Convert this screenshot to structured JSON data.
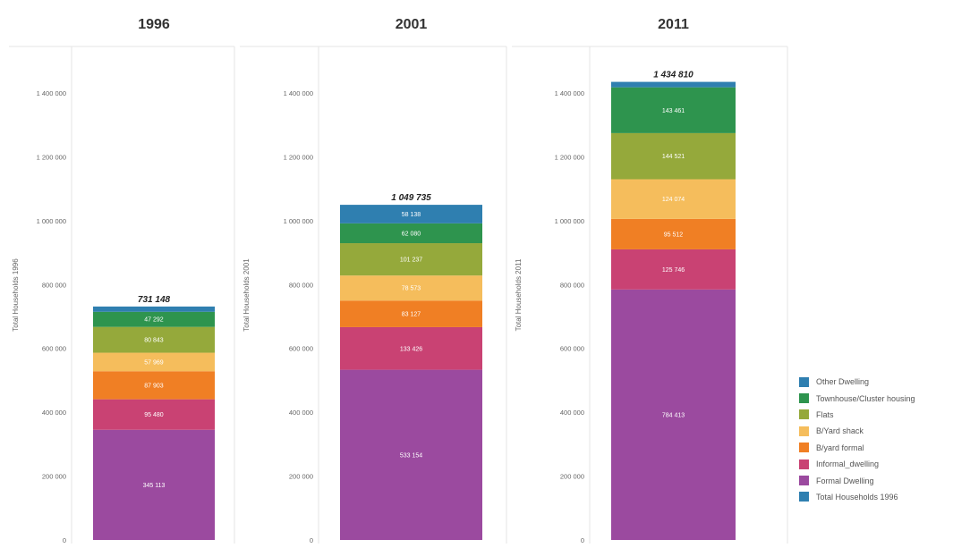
{
  "colors": {
    "formal": "#9b4a9f",
    "informal": "#c94273",
    "byard_formal": "#f07f24",
    "byard_shack": "#f5bd5c",
    "flats": "#95a93b",
    "townhouse": "#2e944e",
    "other": "#2f7fb0"
  },
  "chart_data": [
    {
      "type": "bar",
      "stacked": true,
      "title": "1996",
      "ylabel": "Total Households 1996",
      "ylim": [
        0,
        1500000
      ],
      "yticks": [
        "0",
        "200 000",
        "400 000",
        "600 000",
        "800 000",
        "1 000 000",
        "1 200 000",
        "1 400 000"
      ],
      "ytick_values": [
        0,
        200000,
        400000,
        600000,
        800000,
        1000000,
        1200000,
        1400000
      ],
      "total": 731148,
      "total_label": "731 148",
      "segments": [
        {
          "name": "Formal Dwelling",
          "color_key": "formal",
          "value": 345113,
          "label": "345 113"
        },
        {
          "name": "Informal_dwelling",
          "color_key": "informal",
          "value": 95480,
          "label": "95 480"
        },
        {
          "name": "B/yard formal",
          "color_key": "byard_formal",
          "value": 87903,
          "label": "87 903"
        },
        {
          "name": "B/Yard shack",
          "color_key": "byard_shack",
          "value": 57969,
          "label": "57 969"
        },
        {
          "name": "Flats",
          "color_key": "flats",
          "value": 80843,
          "label": "80 843"
        },
        {
          "name": "Townhouse/Cluster housing",
          "color_key": "townhouse",
          "value": 47292,
          "label": "47 292"
        },
        {
          "name": "Other Dwelling",
          "color_key": "other",
          "value": 16548,
          "label": ""
        }
      ]
    },
    {
      "type": "bar",
      "stacked": true,
      "title": "2001",
      "ylabel": "Total Households 2001",
      "ylim": [
        0,
        1500000
      ],
      "yticks": [
        "0",
        "200 000",
        "400 000",
        "600 000",
        "800 000",
        "1 000 000",
        "1 200 000",
        "1 400 000"
      ],
      "ytick_values": [
        0,
        200000,
        400000,
        600000,
        800000,
        1000000,
        1200000,
        1400000
      ],
      "total": 1049735,
      "total_label": "1 049 735",
      "segments": [
        {
          "name": "Formal Dwelling",
          "color_key": "formal",
          "value": 533154,
          "label": "533 154"
        },
        {
          "name": "Informal_dwelling",
          "color_key": "informal",
          "value": 133426,
          "label": "133 426"
        },
        {
          "name": "B/yard formal",
          "color_key": "byard_formal",
          "value": 83127,
          "label": "83 127"
        },
        {
          "name": "B/Yard shack",
          "color_key": "byard_shack",
          "value": 78573,
          "label": "78 573"
        },
        {
          "name": "Flats",
          "color_key": "flats",
          "value": 101237,
          "label": "101 237"
        },
        {
          "name": "Townhouse/Cluster housing",
          "color_key": "townhouse",
          "value": 62080,
          "label": "62 080"
        },
        {
          "name": "Other Dwelling",
          "color_key": "other",
          "value": 58138,
          "label": "58 138"
        }
      ]
    },
    {
      "type": "bar",
      "stacked": true,
      "title": "2011",
      "ylabel": "Total Households 2011",
      "ylim": [
        0,
        1500000
      ],
      "yticks": [
        "0",
        "200 000",
        "400 000",
        "600 000",
        "800 000",
        "1 000 000",
        "1 200 000",
        "1 400 000"
      ],
      "ytick_values": [
        0,
        200000,
        400000,
        600000,
        800000,
        1000000,
        1200000,
        1400000
      ],
      "total": 1434810,
      "total_label": "1 434 810",
      "segments": [
        {
          "name": "Formal Dwelling",
          "color_key": "formal",
          "value": 784413,
          "label": "784 413"
        },
        {
          "name": "Informal_dwelling",
          "color_key": "informal",
          "value": 125746,
          "label": "125 746"
        },
        {
          "name": "B/yard formal",
          "color_key": "byard_formal",
          "value": 95512,
          "label": "95 512"
        },
        {
          "name": "B/Yard shack",
          "color_key": "byard_shack",
          "value": 124074,
          "label": "124 074"
        },
        {
          "name": "Flats",
          "color_key": "flats",
          "value": 144521,
          "label": "144 521"
        },
        {
          "name": "Townhouse/Cluster housing",
          "color_key": "townhouse",
          "value": 143461,
          "label": "143 461"
        },
        {
          "name": "Other Dwelling",
          "color_key": "other",
          "value": 17083,
          "label": ""
        }
      ]
    }
  ],
  "legend": [
    {
      "label": "Other Dwelling",
      "color": "#2f7fb0"
    },
    {
      "label": "Townhouse/Cluster housing",
      "color": "#2e944e"
    },
    {
      "label": "Flats",
      "color": "#95a93b"
    },
    {
      "label": "B/Yard shack",
      "color": "#f5bd5c"
    },
    {
      "label": "B/yard formal",
      "color": "#f07f24"
    },
    {
      "label": "Informal_dwelling",
      "color": "#c94273"
    },
    {
      "label": "Formal Dwelling",
      "color": "#9b4a9f"
    },
    {
      "label": "Total Households 1996",
      "color": "#2f7fb0"
    }
  ]
}
